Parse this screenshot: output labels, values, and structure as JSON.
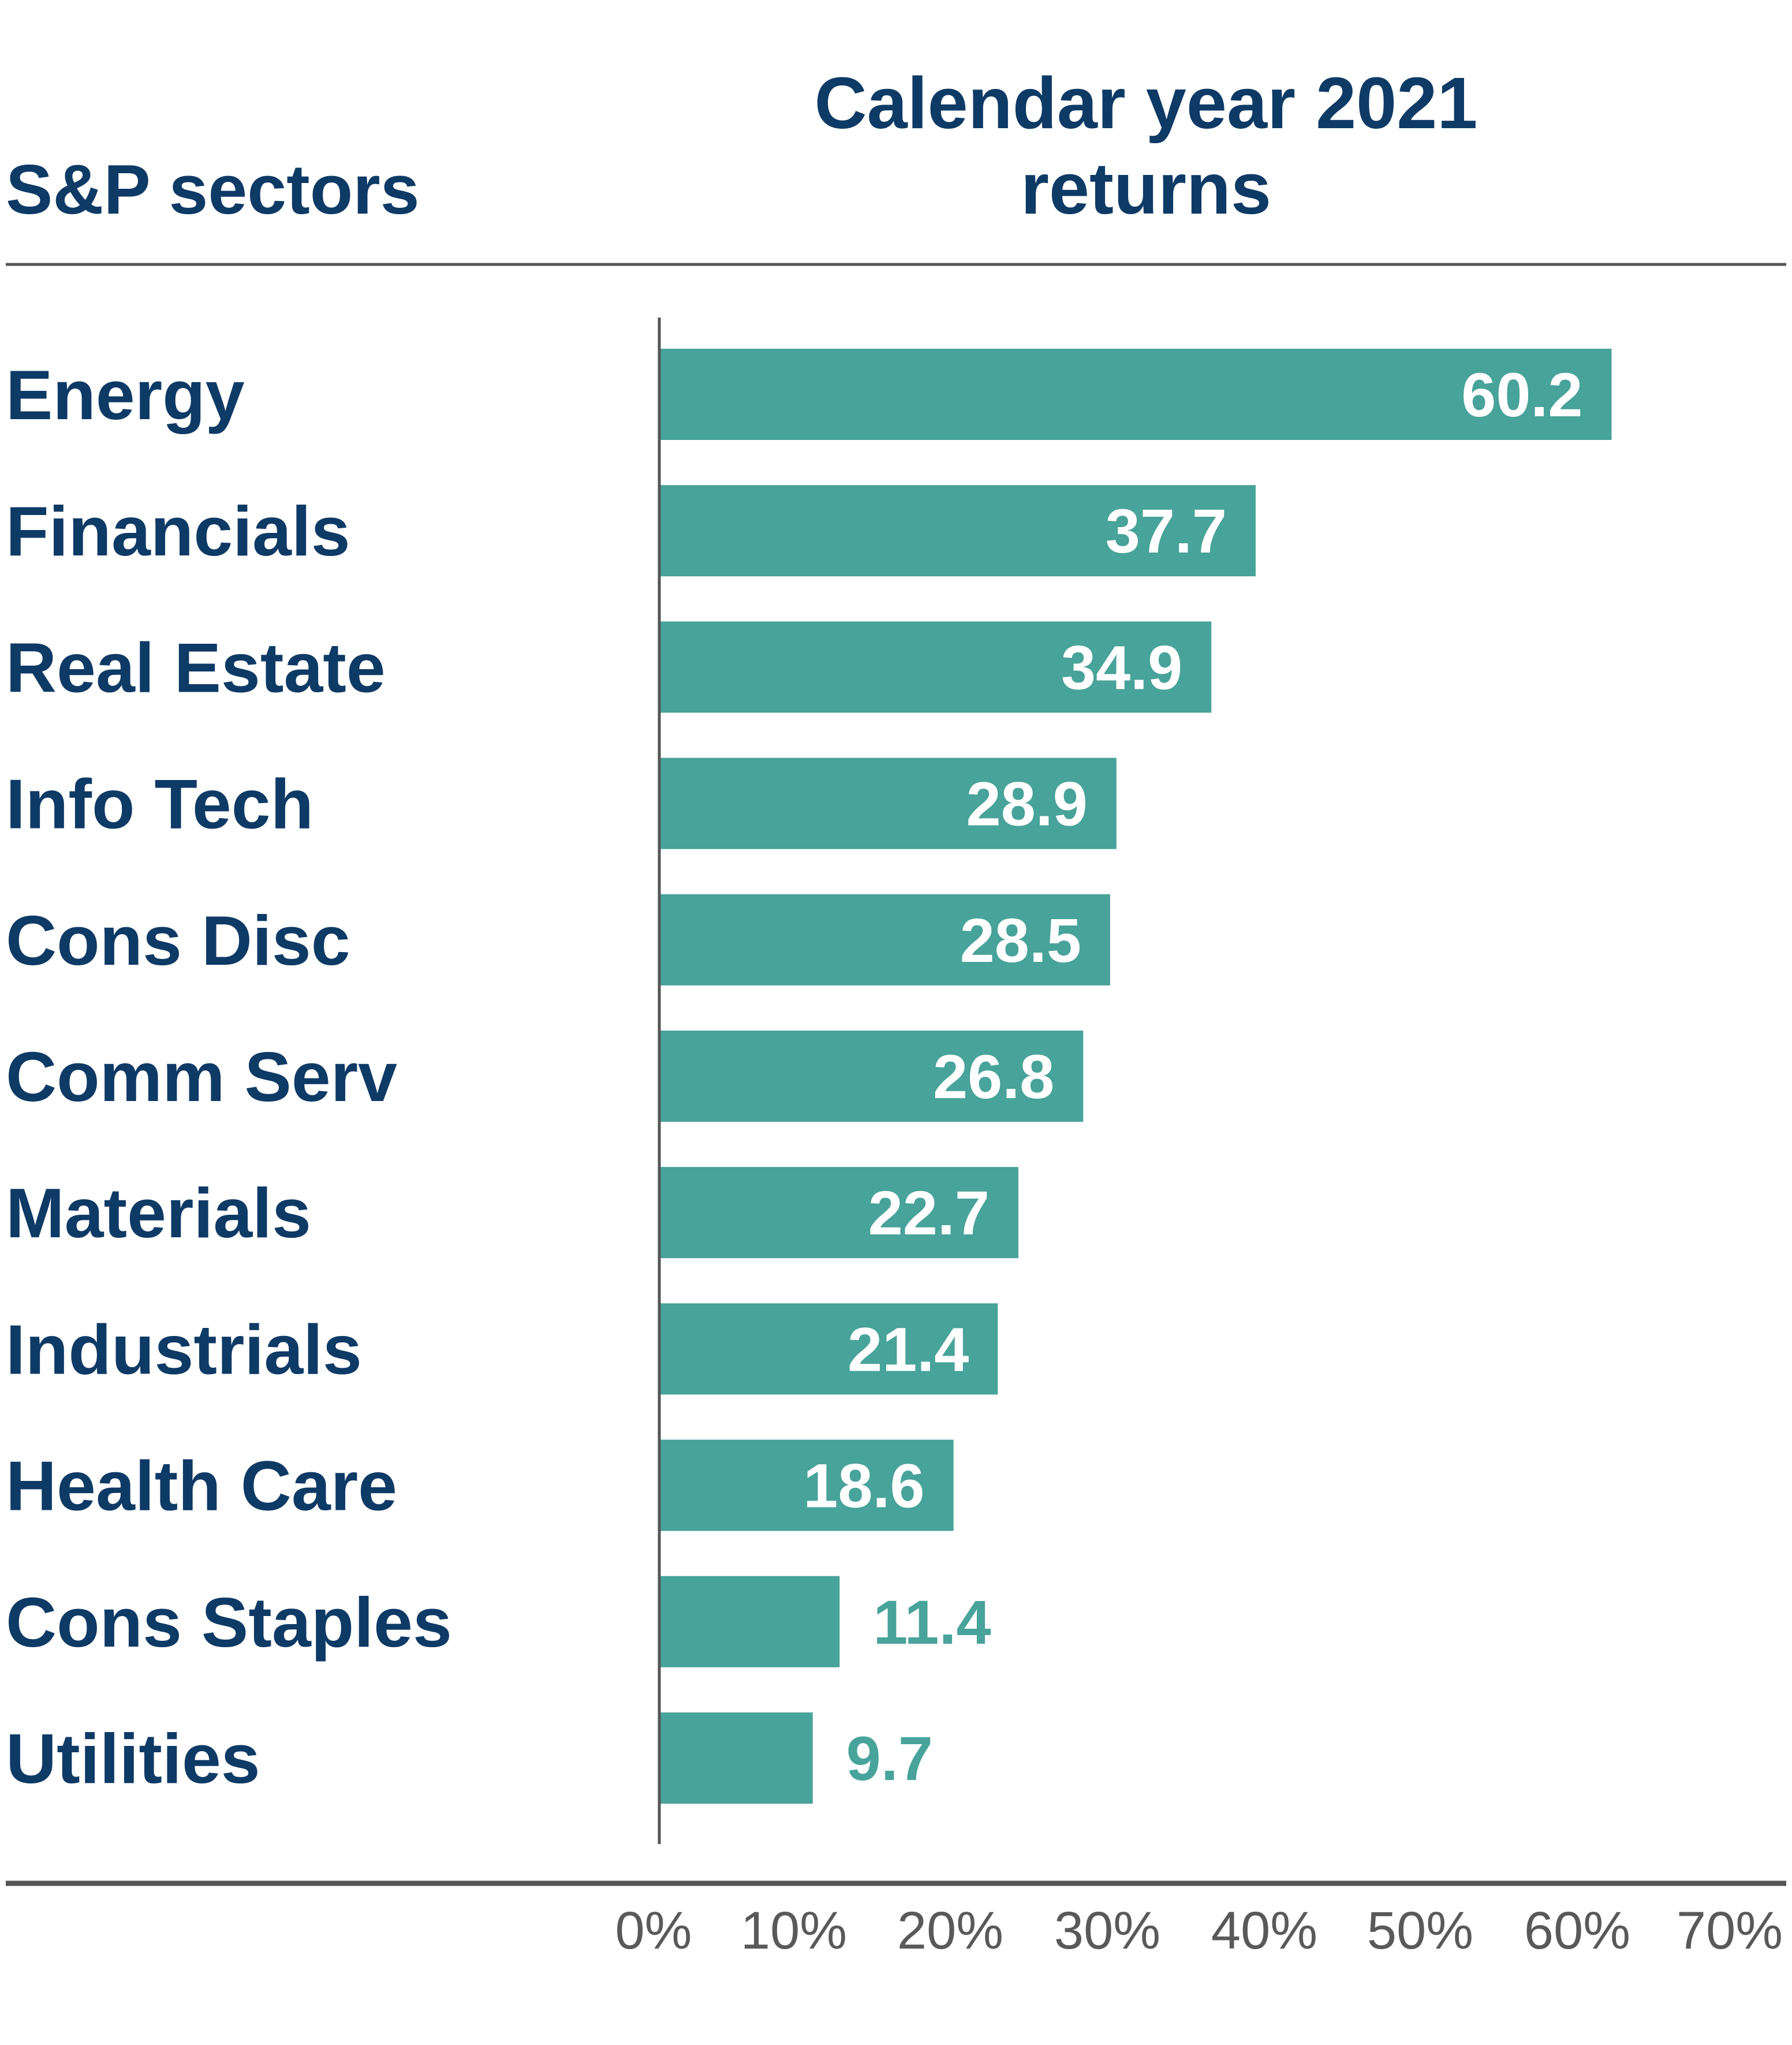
{
  "header": {
    "left_title": "S&P sectors",
    "right_title_line1": "Calendar year 2021",
    "right_title_line2": "returns"
  },
  "colors": {
    "bar": "#48a39a",
    "heading": "#0e3a66",
    "axis": "#555555",
    "tick_text": "#595959",
    "label_inside": "#ffffff",
    "label_outside": "#48a39a"
  },
  "chart_data": {
    "type": "bar",
    "orientation": "horizontal",
    "title": "Calendar year 2021 returns",
    "categories_title": "S&P sectors",
    "categories": [
      "Energy",
      "Financials",
      "Real Estate",
      "Info Tech",
      "Cons Disc",
      "Comm Serv",
      "Materials",
      "Industrials",
      "Health Care",
      "Cons Staples",
      "Utilities"
    ],
    "values": [
      60.2,
      37.7,
      34.9,
      28.9,
      28.5,
      26.8,
      22.7,
      21.4,
      18.6,
      11.4,
      9.7
    ],
    "value_labels": [
      "60.2",
      "37.7",
      "34.9",
      "28.9",
      "28.5",
      "26.8",
      "22.7",
      "21.4",
      "18.6",
      "11.4",
      "9.7"
    ],
    "xlim": [
      0,
      70
    ],
    "x_ticks": [
      0,
      10,
      20,
      30,
      40,
      50,
      60,
      70
    ],
    "x_tick_labels": [
      "0%",
      "10%",
      "20%",
      "30%",
      "40%",
      "50%",
      "60%",
      "70%"
    ],
    "grid": false,
    "legend": "none"
  }
}
